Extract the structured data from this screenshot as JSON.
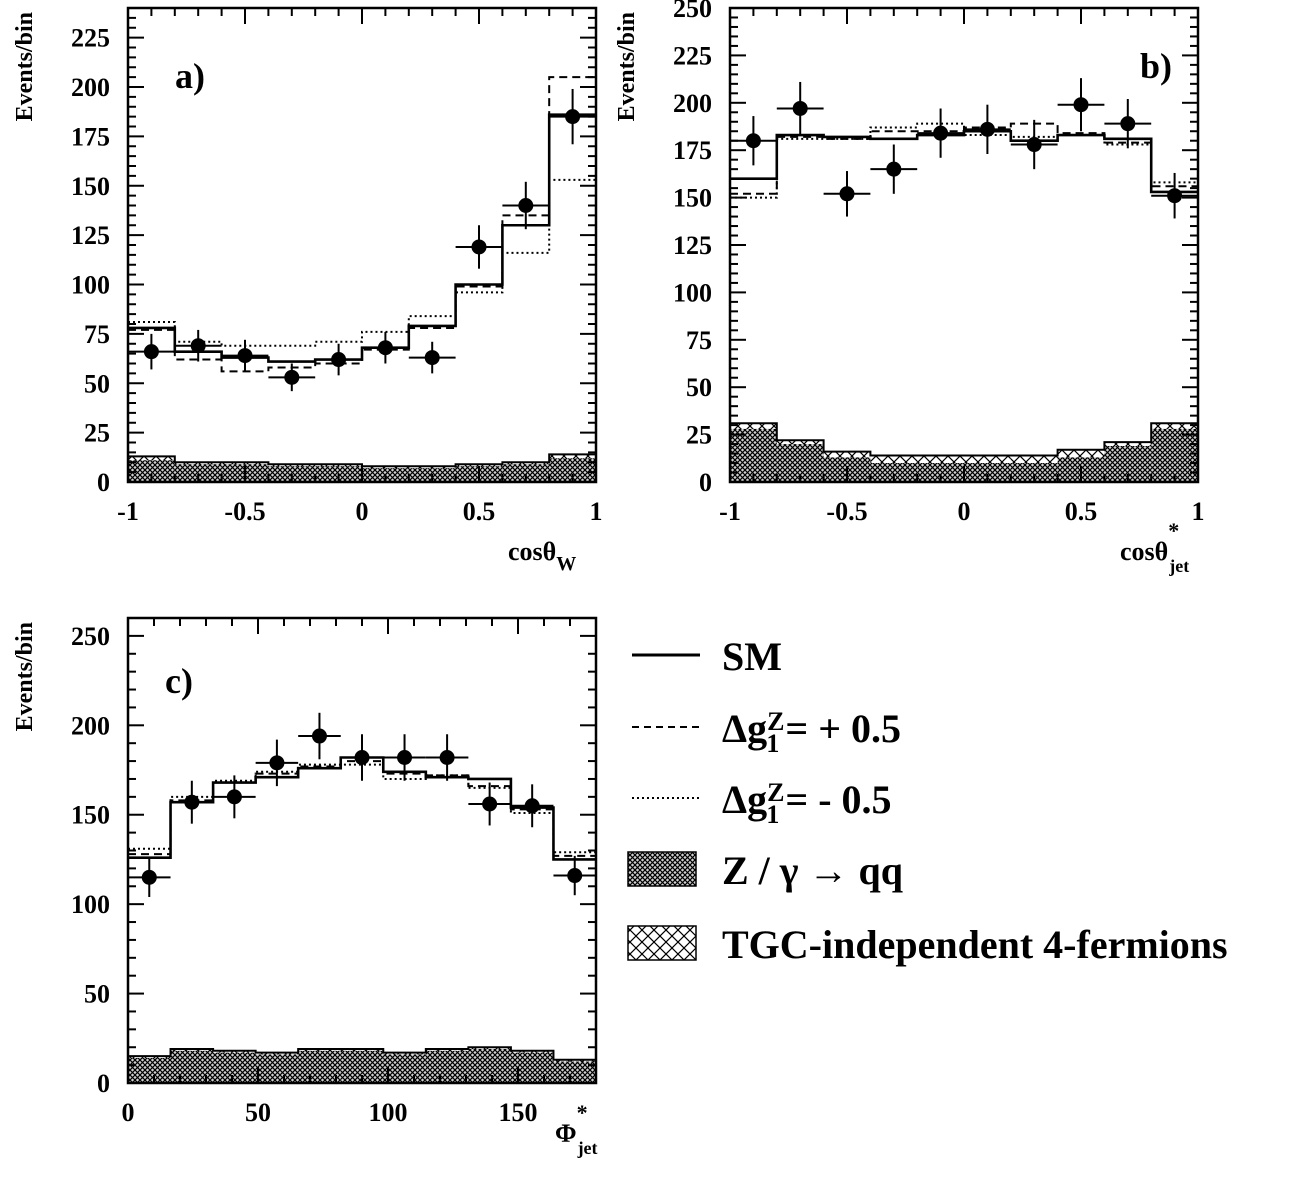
{
  "chart_data": [
    {
      "type": "histogram",
      "panel_label": "a)",
      "ylabel": "Events/bin",
      "xlabel_main": "cosθ",
      "xlabel_sub": "W",
      "xlabel_sup": "",
      "xlim": [
        -1,
        1
      ],
      "ylim": [
        0,
        240
      ],
      "yticks": [
        0,
        25,
        50,
        75,
        100,
        125,
        150,
        175,
        200,
        225
      ],
      "xticks": [
        -1,
        -0.5,
        0,
        0.5,
        1
      ],
      "xtick_labels": [
        "-1",
        "-0.5",
        "0",
        "0.5",
        "1"
      ],
      "bin_edges": [
        -1,
        -0.8,
        -0.6,
        -0.4,
        -0.2,
        0,
        0.2,
        0.4,
        0.6,
        0.8,
        1
      ],
      "data_points": {
        "x": [
          -0.9,
          -0.7,
          -0.5,
          -0.3,
          -0.1,
          0.1,
          0.3,
          0.5,
          0.7,
          0.9
        ],
        "y": [
          66,
          69,
          64,
          53,
          62,
          68,
          63,
          119,
          140,
          185
        ],
        "err": [
          9,
          8,
          8,
          7,
          8,
          8,
          8,
          11,
          12,
          14
        ]
      },
      "series": [
        {
          "name": "SM",
          "style": "solid",
          "values": [
            78,
            66,
            63,
            61,
            62,
            68,
            79,
            100,
            130,
            186
          ]
        },
        {
          "name": "Δg1Z = + 0.5",
          "style": "dashed",
          "values": [
            77,
            62,
            56,
            58,
            60,
            67,
            78,
            99,
            135,
            205
          ]
        },
        {
          "name": "Δg1Z = - 0.5",
          "style": "dotted",
          "values": [
            81,
            71,
            69,
            69,
            71,
            76,
            84,
            96,
            116,
            153
          ]
        }
      ],
      "background_total": [
        13,
        10,
        10,
        9,
        9,
        8,
        8,
        9,
        10,
        14
      ],
      "background_qq": [
        11,
        9,
        9,
        8,
        8,
        7,
        7,
        8,
        9,
        12
      ]
    },
    {
      "type": "histogram",
      "panel_label": "b)",
      "ylabel": "Events/bin",
      "xlabel_main": "cosθ",
      "xlabel_sub": "jet",
      "xlabel_sup": "*",
      "xlim": [
        -1,
        1
      ],
      "ylim": [
        0,
        250
      ],
      "yticks": [
        0,
        25,
        50,
        75,
        100,
        125,
        150,
        175,
        200,
        225,
        250
      ],
      "xticks": [
        -1,
        -0.5,
        0,
        0.5,
        1
      ],
      "xtick_labels": [
        "-1",
        "-0.5",
        "0",
        "0.5",
        "1"
      ],
      "bin_edges": [
        -1,
        -0.8,
        -0.6,
        -0.4,
        -0.2,
        0,
        0.2,
        0.4,
        0.6,
        0.8,
        1
      ],
      "data_points": {
        "x": [
          -0.9,
          -0.7,
          -0.5,
          -0.3,
          -0.1,
          0.1,
          0.3,
          0.5,
          0.7,
          0.9
        ],
        "y": [
          180,
          197,
          152,
          165,
          184,
          186,
          178,
          199,
          189,
          151
        ],
        "err": [
          13,
          14,
          12,
          13,
          13,
          13,
          13,
          14,
          13,
          12
        ]
      },
      "series": [
        {
          "name": "SM",
          "style": "solid",
          "values": [
            160,
            183,
            182,
            181,
            183,
            185,
            180,
            183,
            181,
            153
          ]
        },
        {
          "name": "Δg1Z = + 0.5",
          "style": "dashed",
          "values": [
            152,
            182,
            181,
            185,
            185,
            187,
            189,
            184,
            179,
            156
          ]
        },
        {
          "name": "Δg1Z = - 0.5",
          "style": "dotted",
          "values": [
            150,
            181,
            181,
            187,
            189,
            183,
            182,
            183,
            178,
            158
          ]
        }
      ],
      "background_total": [
        31,
        22,
        16,
        14,
        14,
        14,
        14,
        17,
        21,
        31
      ],
      "background_qq": [
        28,
        20,
        13,
        10,
        10,
        10,
        10,
        13,
        19,
        28
      ]
    },
    {
      "type": "histogram",
      "panel_label": "c)",
      "ylabel": "Events/bin",
      "xlabel_main": "Φ",
      "xlabel_sub": "jet",
      "xlabel_sup": "*",
      "xlim": [
        0,
        180
      ],
      "ylim": [
        0,
        260
      ],
      "yticks": [
        0,
        50,
        100,
        150,
        200,
        250
      ],
      "xticks": [
        0,
        50,
        100,
        150
      ],
      "xtick_labels": [
        "0",
        "50",
        "100",
        "150"
      ],
      "bin_edges": [
        0,
        16.36,
        32.73,
        49.09,
        65.45,
        81.82,
        98.18,
        114.55,
        130.91,
        147.27,
        163.64,
        180
      ],
      "data_points": {
        "x": [
          8.18,
          24.55,
          40.91,
          57.27,
          73.64,
          90,
          106.36,
          122.73,
          139.09,
          155.45,
          171.82
        ],
        "y": [
          115,
          157,
          160,
          179,
          194,
          182,
          182,
          182,
          156,
          155,
          116
        ],
        "err": [
          11,
          12,
          12,
          13,
          13,
          13,
          13,
          13,
          12,
          12,
          11
        ]
      },
      "series": [
        {
          "name": "SM",
          "style": "solid",
          "values": [
            126,
            157,
            168,
            171,
            176,
            182,
            174,
            171,
            170,
            154,
            125
          ]
        },
        {
          "name": "Δg1Z = + 0.5",
          "style": "dashed",
          "values": [
            128,
            158,
            168,
            173,
            177,
            180,
            173,
            172,
            166,
            153,
            127
          ]
        },
        {
          "name": "Δg1Z = - 0.5",
          "style": "dotted",
          "values": [
            131,
            160,
            169,
            174,
            178,
            178,
            170,
            172,
            165,
            151,
            129
          ]
        }
      ],
      "background_total": [
        15,
        19,
        18,
        17,
        19,
        19,
        17,
        19,
        20,
        18,
        13
      ],
      "background_qq": [
        14,
        18,
        17,
        16,
        18,
        18,
        16,
        18,
        19,
        17,
        12
      ]
    }
  ],
  "legend": {
    "sm": "SM",
    "dg_plus": {
      "delta": "Δg",
      "sub": "1",
      "sup": "Z",
      "rest": "= + 0.5"
    },
    "dg_minus": {
      "delta": "Δg",
      "sub": "1",
      "sup": "Z",
      "rest": "= -  0.5"
    },
    "zqq": "Z / γ → qq",
    "tgc": "TGC-independent 4-fermions"
  }
}
